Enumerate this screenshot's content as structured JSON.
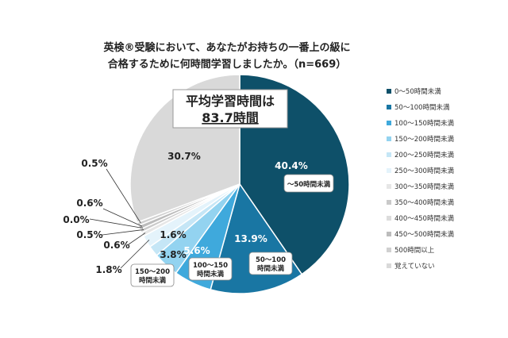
{
  "chart_data": {
    "type": "pie",
    "title_lines": [
      "英検®受験において、あなたがお持ちの一番上の級に",
      "合格するために何時間学習しましたか。（n=669）"
    ],
    "callout": {
      "line1": "平均学習時間は",
      "line2": "83.7時間"
    },
    "slices": [
      {
        "label": "0～50時間未満",
        "value": 40.4,
        "value_label": "40.4%",
        "color": "#0e5069",
        "tag": "～50時間未満"
      },
      {
        "label": "50～100時間未満",
        "value": 13.9,
        "value_label": "13.9%",
        "color": "#1976a3",
        "tag": "50～100 時間未満"
      },
      {
        "label": "100～150時間未満",
        "value": 5.6,
        "value_label": "5.6%",
        "color": "#3fa9dc",
        "tag": "100～150 時間未満"
      },
      {
        "label": "150～200時間未満",
        "value": 3.8,
        "value_label": "3.8%",
        "color": "#93d3f0",
        "tag": "150～200 時間未満"
      },
      {
        "label": "200～250時間未満",
        "value": 1.6,
        "value_label": "1.6%",
        "color": "#c5e6f6",
        "tag": ""
      },
      {
        "label": "250～300時間未満",
        "value": 1.8,
        "value_label": "1.8%",
        "color": "#e4f3fb",
        "tag": ""
      },
      {
        "label": "300～350時間未満",
        "value": 0.6,
        "value_label": "0.6%",
        "color": "#e6e6e6",
        "tag": ""
      },
      {
        "label": "350～400時間未満",
        "value": 0.5,
        "value_label": "0.5%",
        "color": "#c9c9c9",
        "tag": ""
      },
      {
        "label": "400～450時間未満",
        "value": 0.0,
        "value_label": "0.0%",
        "color": "#dcdcdc",
        "tag": ""
      },
      {
        "label": "450～500時間未満",
        "value": 0.6,
        "value_label": "0.6%",
        "color": "#bcbcbc",
        "tag": ""
      },
      {
        "label": "500時間以上",
        "value": 0.5,
        "value_label": "0.5%",
        "color": "#d0d0d0",
        "tag": ""
      },
      {
        "label": "覚えていない",
        "value": 30.7,
        "value_label": "30.7%",
        "color": "#d9d9d9",
        "tag": ""
      }
    ],
    "legend_position": "right"
  }
}
